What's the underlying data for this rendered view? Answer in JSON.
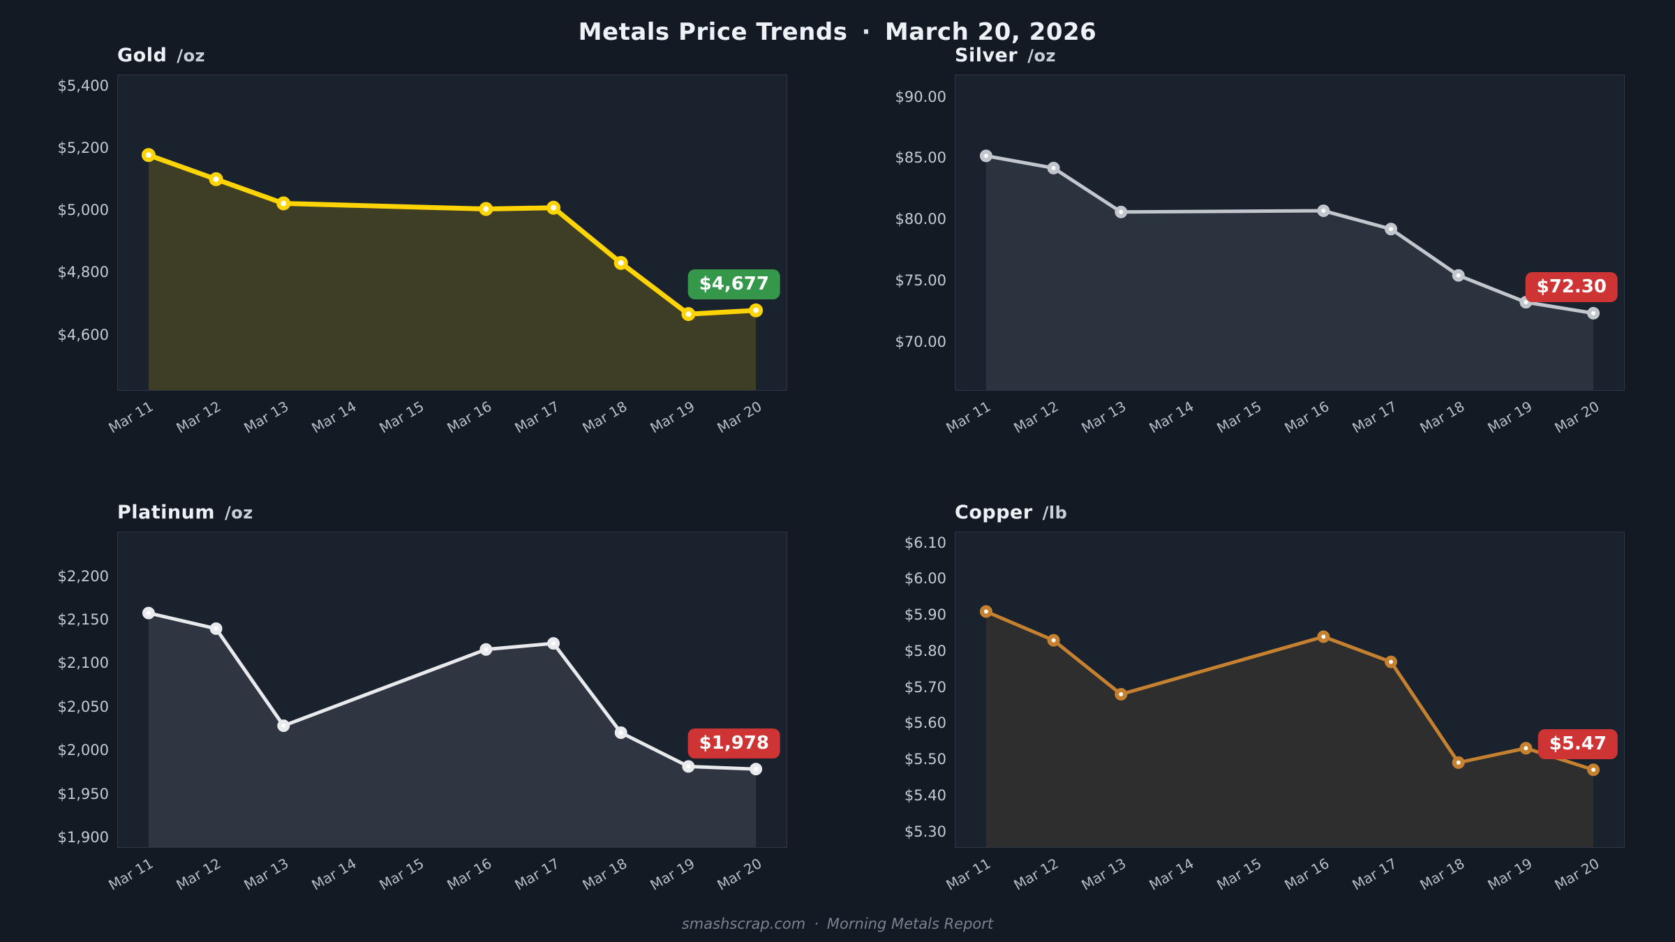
{
  "header": {
    "title": "Metals Price Trends",
    "separator": "·",
    "date": "March 20, 2026"
  },
  "footer": {
    "source": "smashscrap.com",
    "separator": "·",
    "report": "Morning Metals Report"
  },
  "colors": {
    "page_bg": "#131a24",
    "plot_bg": "#1a222e",
    "plot_border": "#2e3844",
    "tick_text": "#c3cbd4",
    "badge_up": "#35974a",
    "badge_down": "#cf3434",
    "badge_text": "#ffffff"
  },
  "x_labels": [
    "Mar 11",
    "Mar 12",
    "Mar 13",
    "Mar 14",
    "Mar 15",
    "Mar 16",
    "Mar 17",
    "Mar 18",
    "Mar 19",
    "Mar 20"
  ],
  "chart_data": [
    {
      "id": "gold",
      "type": "line",
      "title": "Gold",
      "unit": "/oz",
      "line_color": "#ffd400",
      "fill_color": "rgba(255,212,0,0.16)",
      "line_width": 7,
      "marker_radius": 7,
      "dates": [
        "Mar 11",
        "Mar 12",
        "Mar 13",
        "Mar 16",
        "Mar 17",
        "Mar 18",
        "Mar 19",
        "Mar 20"
      ],
      "day_index": [
        0,
        1,
        2,
        5,
        6,
        7,
        8,
        9
      ],
      "values": [
        5178,
        5100,
        5022,
        5004,
        5008,
        4830,
        4665,
        4677
      ],
      "ylim": [
        4420,
        5435
      ],
      "y_ticks": [
        {
          "label": "$5,400",
          "value": 5400
        },
        {
          "label": "$5,200",
          "value": 5200
        },
        {
          "label": "$5,000",
          "value": 5000
        },
        {
          "label": "$4,800",
          "value": 4800
        },
        {
          "label": "$4,600",
          "value": 4600
        }
      ],
      "last_price_label": "$4,677",
      "change_direction": "up",
      "grid": false,
      "legend": "none"
    },
    {
      "id": "silver",
      "type": "line",
      "title": "Silver",
      "unit": "/oz",
      "line_color": "#c2c7cd",
      "fill_color": "rgba(197,204,211,0.10)",
      "line_width": 5,
      "marker_radius": 6,
      "dates": [
        "Mar 11",
        "Mar 12",
        "Mar 13",
        "Mar 16",
        "Mar 17",
        "Mar 18",
        "Mar 19",
        "Mar 20"
      ],
      "day_index": [
        0,
        1,
        2,
        5,
        6,
        7,
        8,
        9
      ],
      "values": [
        85.2,
        84.2,
        80.6,
        80.7,
        79.2,
        75.4,
        73.2,
        72.3
      ],
      "ylim": [
        66.0,
        91.8
      ],
      "y_ticks": [
        {
          "label": "$90.00",
          "value": 90
        },
        {
          "label": "$85.00",
          "value": 85
        },
        {
          "label": "$80.00",
          "value": 80
        },
        {
          "label": "$75.00",
          "value": 75
        },
        {
          "label": "$70.00",
          "value": 70
        }
      ],
      "last_price_label": "$72.30",
      "change_direction": "down",
      "grid": false,
      "legend": "none"
    },
    {
      "id": "platinum",
      "type": "line",
      "title": "Platinum",
      "unit": "/oz",
      "line_color": "#e9eaee",
      "fill_color": "rgba(233,234,238,0.10)",
      "line_width": 5,
      "marker_radius": 6,
      "dates": [
        "Mar 11",
        "Mar 12",
        "Mar 13",
        "Mar 16",
        "Mar 17",
        "Mar 18",
        "Mar 19",
        "Mar 20"
      ],
      "day_index": [
        0,
        1,
        2,
        5,
        6,
        7,
        8,
        9
      ],
      "values": [
        2158,
        2140,
        2028,
        2116,
        2123,
        2020,
        1981,
        1978
      ],
      "ylim": [
        1888,
        2251
      ],
      "y_ticks": [
        {
          "label": "$2,200",
          "value": 2200
        },
        {
          "label": "$2,150",
          "value": 2150
        },
        {
          "label": "$2,100",
          "value": 2100
        },
        {
          "label": "$2,050",
          "value": 2050
        },
        {
          "label": "$2,000",
          "value": 2000
        },
        {
          "label": "$1,950",
          "value": 1950
        },
        {
          "label": "$1,900",
          "value": 1900
        }
      ],
      "last_price_label": "$1,978",
      "change_direction": "down",
      "grid": false,
      "legend": "none"
    },
    {
      "id": "copper",
      "type": "line",
      "title": "Copper",
      "unit": "/lb",
      "line_color": "#c5812f",
      "fill_color": "rgba(197,129,47,0.13)",
      "line_width": 5,
      "marker_radius": 6,
      "dates": [
        "Mar 11",
        "Mar 12",
        "Mar 13",
        "Mar 16",
        "Mar 17",
        "Mar 18",
        "Mar 19",
        "Mar 20"
      ],
      "day_index": [
        0,
        1,
        2,
        5,
        6,
        7,
        8,
        9
      ],
      "values": [
        5.91,
        5.83,
        5.68,
        5.84,
        5.77,
        5.49,
        5.53,
        5.47
      ],
      "ylim": [
        5.255,
        6.13
      ],
      "y_ticks": [
        {
          "label": "$6.10",
          "value": 6.1
        },
        {
          "label": "$6.00",
          "value": 6.0
        },
        {
          "label": "$5.90",
          "value": 5.9
        },
        {
          "label": "$5.80",
          "value": 5.8
        },
        {
          "label": "$5.70",
          "value": 5.7
        },
        {
          "label": "$5.60",
          "value": 5.6
        },
        {
          "label": "$5.50",
          "value": 5.5
        },
        {
          "label": "$5.40",
          "value": 5.4
        },
        {
          "label": "$5.30",
          "value": 5.3
        }
      ],
      "last_price_label": "$5.47",
      "change_direction": "down",
      "grid": false,
      "legend": "none"
    }
  ]
}
